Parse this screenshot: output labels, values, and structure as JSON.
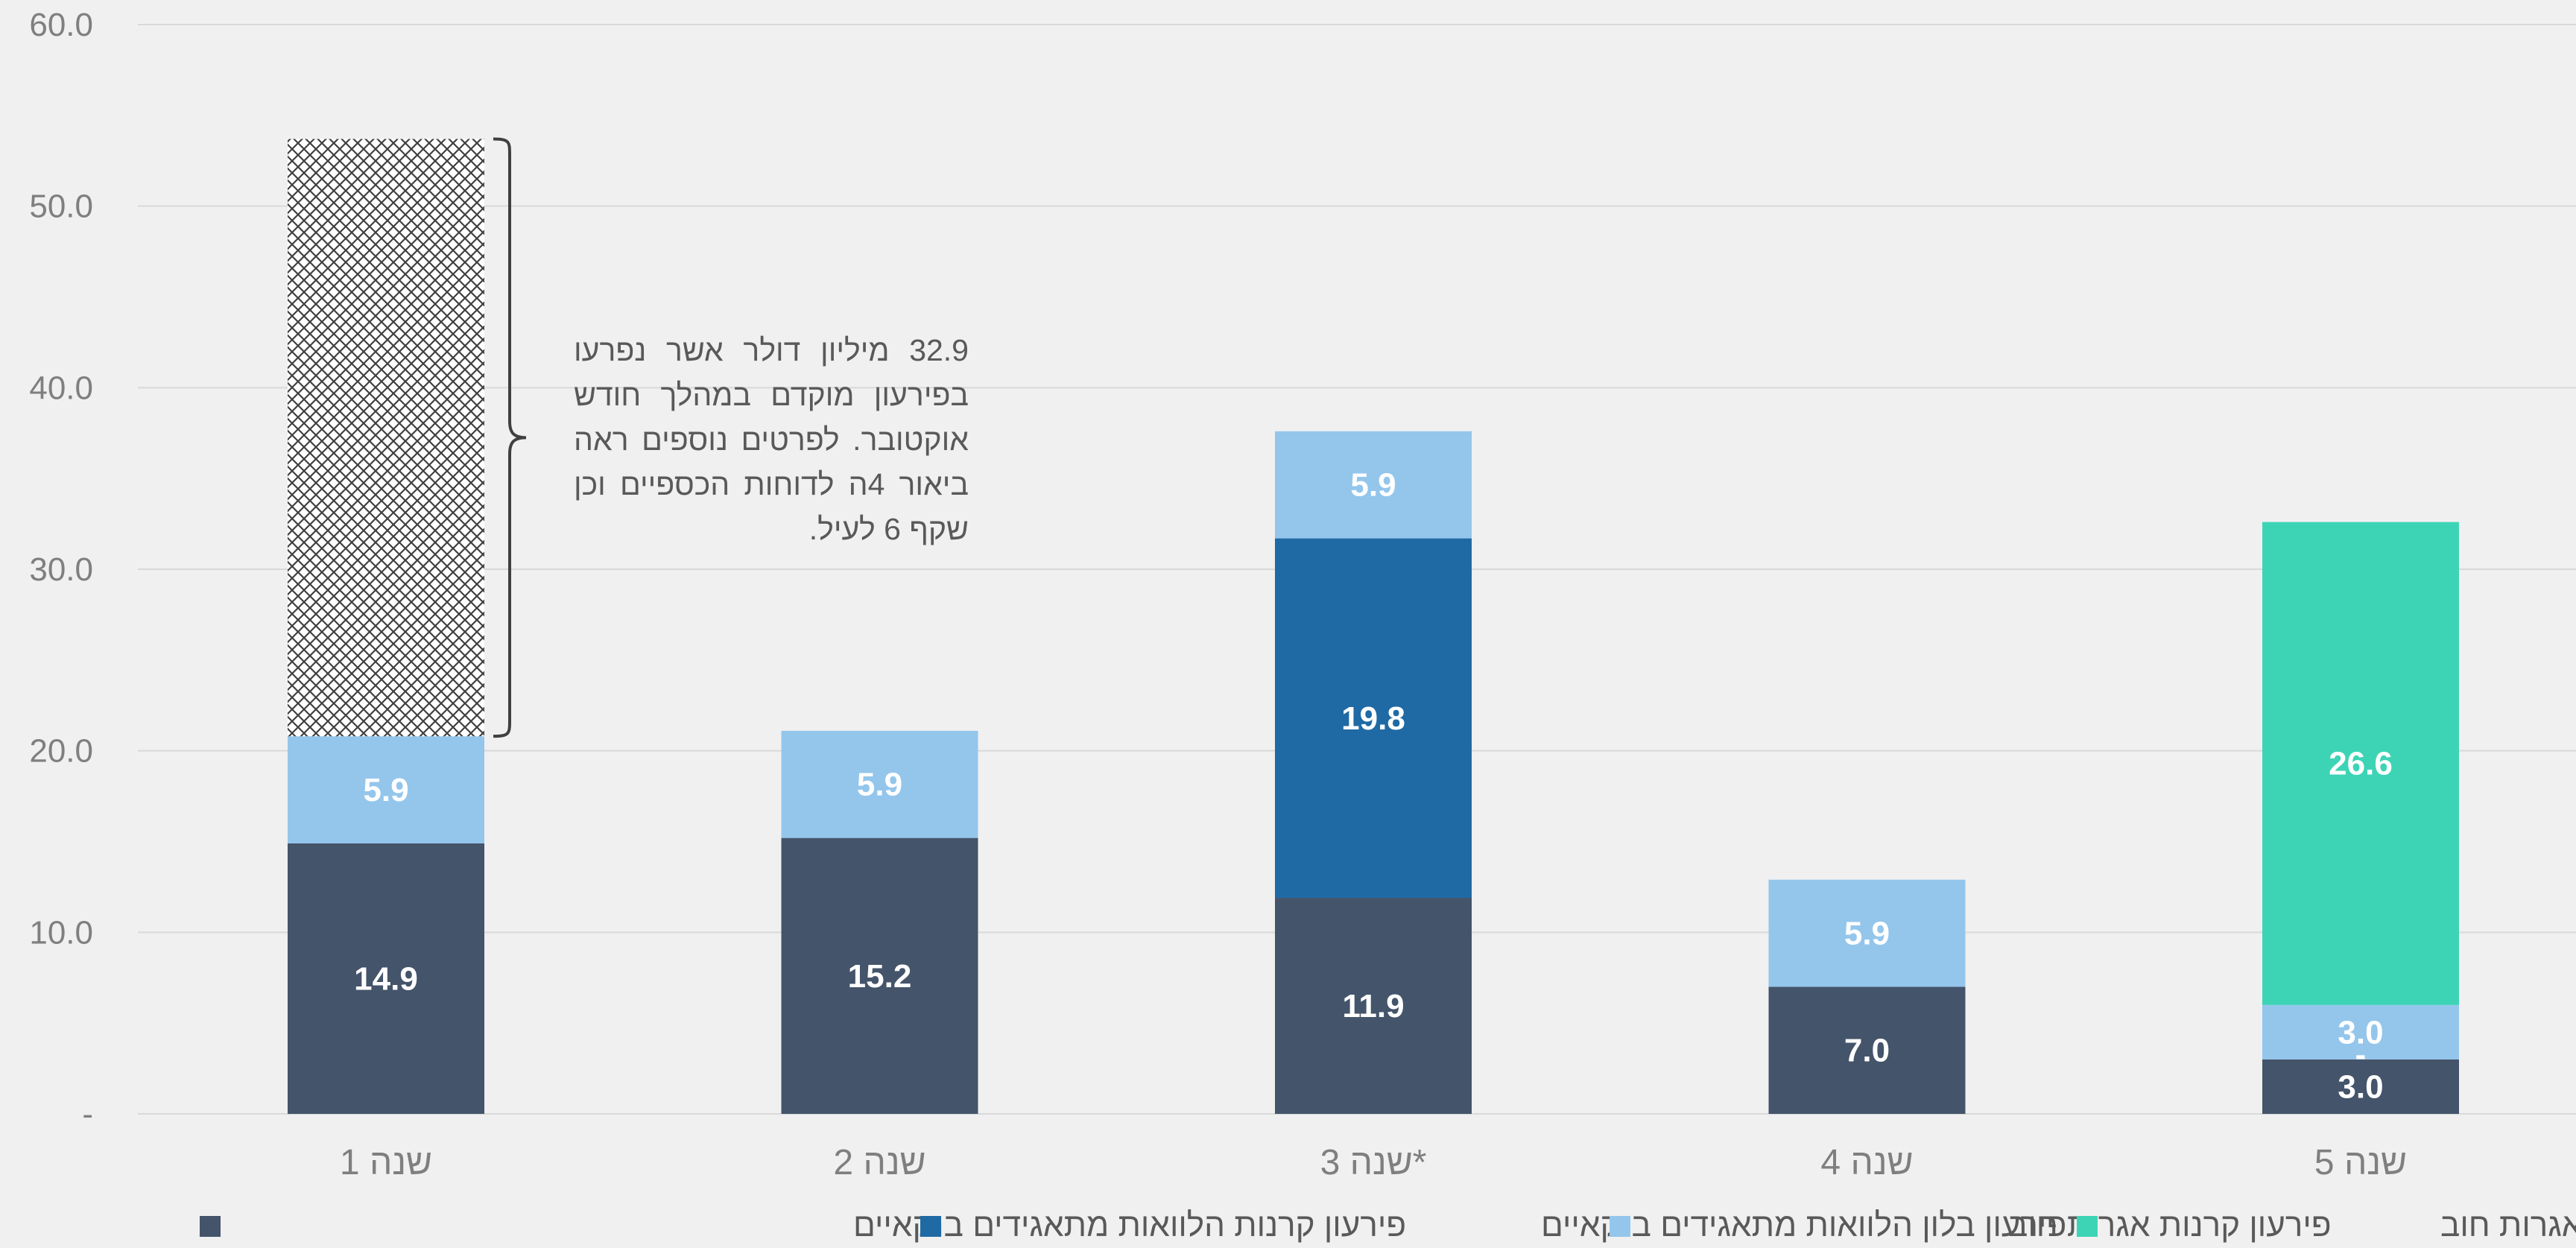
{
  "chart_data": {
    "type": "bar",
    "stacked": true,
    "categories": [
      "שנה 1",
      "שנה 2",
      "*שנה 3",
      "שנה 4",
      "שנה 5"
    ],
    "ylim": [
      0,
      60
    ],
    "yticks": [
      "-",
      "10.0",
      "20.0",
      "30.0",
      "40.0",
      "50.0",
      "60.0"
    ],
    "grid": true,
    "legend_position": "bottom",
    "series": [
      {
        "name": "פירעון קרנות הלוואות מתאגידים בנקאיים",
        "color": "#44546a",
        "values": [
          14.9,
          15.2,
          11.9,
          7.0,
          3.0
        ],
        "labels": [
          "14.9",
          "15.2",
          "11.9",
          "7.0",
          "3.0"
        ]
      },
      {
        "name": "פירעון בלון הלוואות מתאגידים בנקאיים",
        "color": "#1f6aa5",
        "values": [
          0,
          0,
          19.8,
          0,
          0
        ],
        "labels": [
          "",
          "",
          "19.8",
          "",
          "-"
        ]
      },
      {
        "name": "פירעון קרנות אגרות חוב",
        "color": "#94c6ec",
        "values": [
          5.9,
          5.9,
          5.9,
          5.9,
          3.0
        ],
        "labels": [
          "5.9",
          "5.9",
          "5.9",
          "5.9",
          "3.0"
        ]
      },
      {
        "name": "פירעון בלון אגרות חוב",
        "color": "#3dd4b6",
        "values": [
          0,
          0,
          0,
          0,
          26.6
        ],
        "labels": [
          "",
          "",
          "",
          "",
          "26.6"
        ]
      }
    ],
    "prepaid": {
      "category_index": 0,
      "value": 32.9
    },
    "annotation": "32.9 מיליון דולר אשר נפרעו בפירעון מוקדם במהלך חודש אוקטובר. לפרטים נוספים ראה ביאור 4ה לדוחות הכספיים וכן שקף 6 לעיל."
  }
}
